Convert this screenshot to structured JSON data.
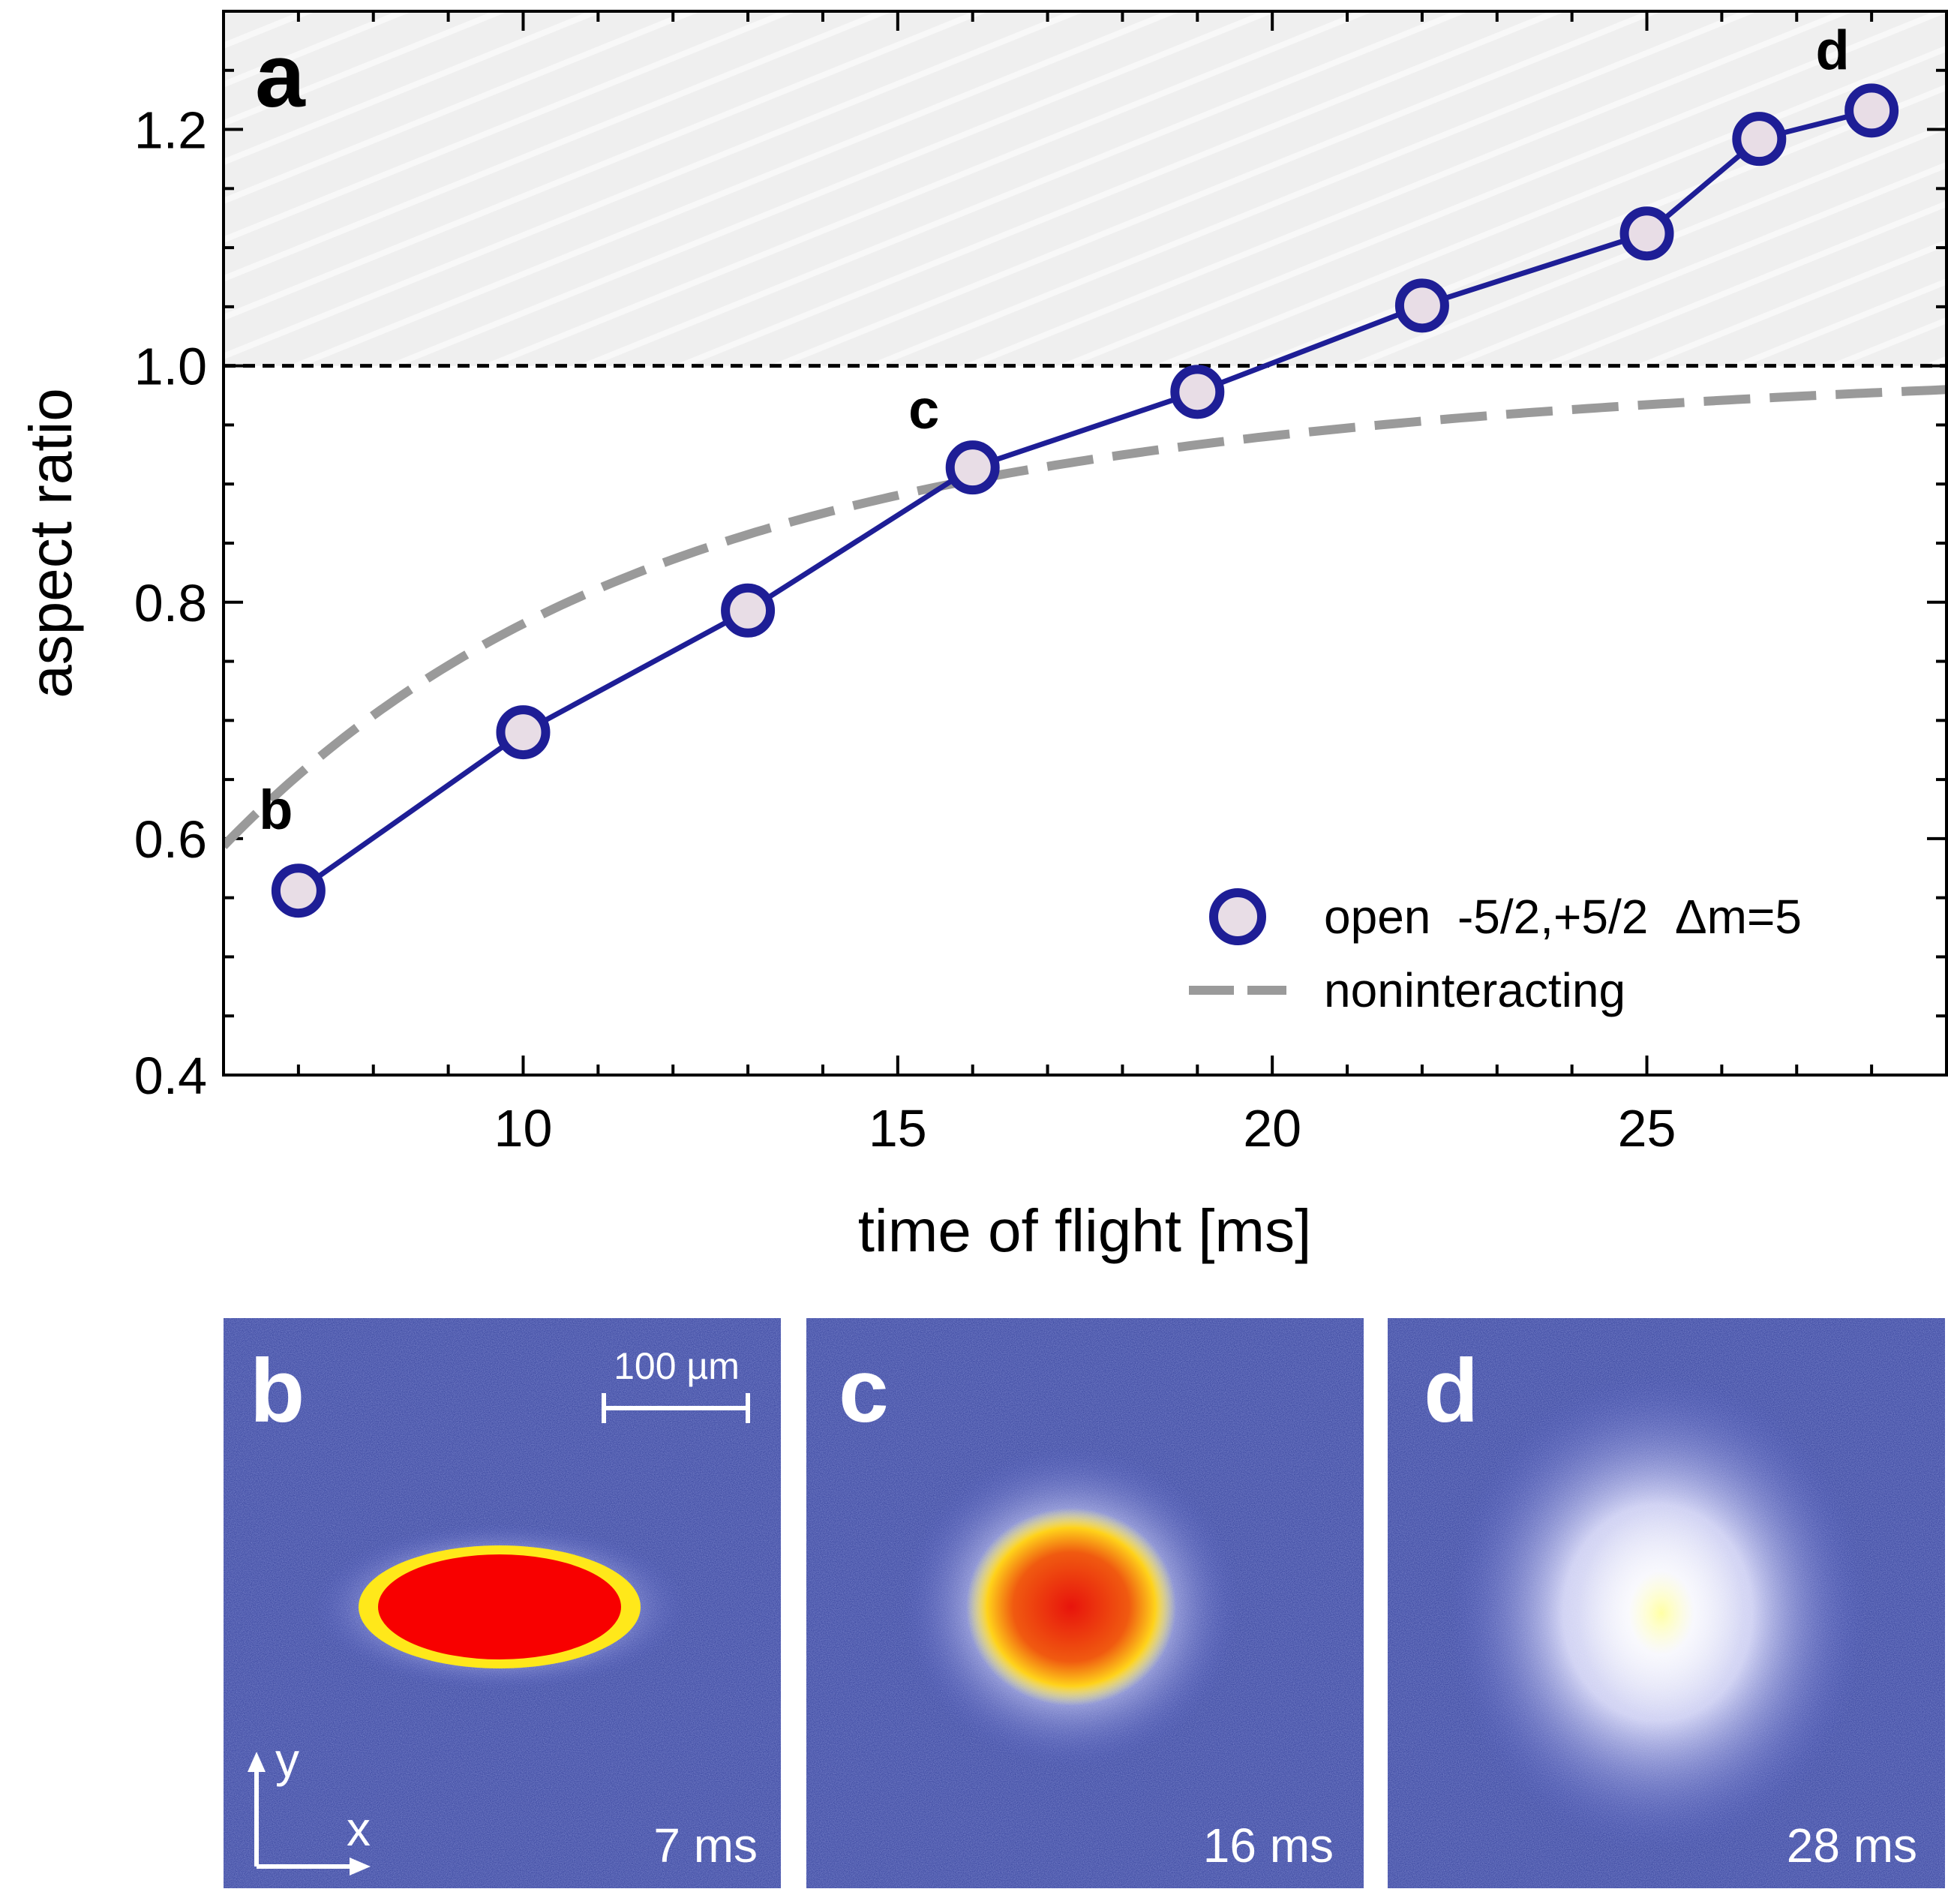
{
  "chart_data": {
    "type": "line",
    "panel_label": "a",
    "xlabel": "time of flight [ms]",
    "ylabel": "aspect ratio",
    "xlim": [
      6,
      29
    ],
    "ylim": [
      0.4,
      1.3
    ],
    "xticks": [
      10,
      15,
      20,
      25
    ],
    "yticks": [
      0.4,
      0.6,
      0.8,
      1.0,
      1.2
    ],
    "yticks_text": [
      "0.4",
      "0.6",
      "0.8",
      "1.0",
      "1.2"
    ],
    "reference_line": 1.0,
    "shaded_region": [
      1.0,
      1.3
    ],
    "series": [
      {
        "name": "open  -5/2,+5/2  Δm=5",
        "color": "#1e1e96",
        "marker_fill": "#e8dde6",
        "x": [
          7,
          10,
          13,
          16,
          19,
          22,
          25,
          26.5,
          28
        ],
        "y": [
          0.556,
          0.69,
          0.793,
          0.914,
          0.978,
          1.051,
          1.112,
          1.192,
          1.216
        ]
      },
      {
        "name": "noninteracting",
        "color": "#9a9a9a",
        "style": "dashed",
        "model": "asymptotic",
        "params": {
          "t0": 6.625,
          "a": 1.0
        }
      }
    ],
    "annotations": [
      {
        "text": "b",
        "x": 7,
        "y": 0.556
      },
      {
        "text": "c",
        "x": 16,
        "y": 0.914
      },
      {
        "text": "d",
        "x": 28,
        "y": 1.216
      }
    ],
    "legend_position": "bottom-right"
  },
  "images": [
    {
      "label": "b",
      "time": "7 ms",
      "scale_bar": "100 µm",
      "axis_x": "x",
      "axis_y": "y"
    },
    {
      "label": "c",
      "time": "16 ms"
    },
    {
      "label": "d",
      "time": "28 ms"
    }
  ]
}
